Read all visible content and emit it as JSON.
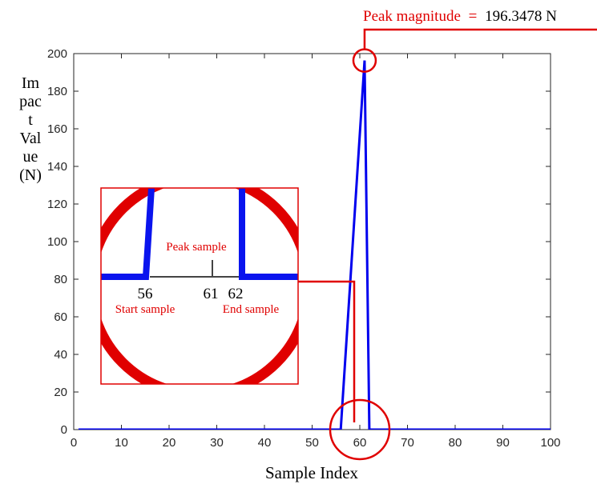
{
  "chart_data": {
    "type": "line",
    "title": "",
    "xlabel": "Sample Index",
    "ylabel_lines": [
      "Im",
      "pac",
      "t",
      "Val",
      "ue",
      "(N)"
    ],
    "xlim": [
      0,
      100
    ],
    "ylim": [
      0,
      200
    ],
    "xticks": [
      0,
      10,
      20,
      30,
      40,
      50,
      60,
      70,
      80,
      90,
      100
    ],
    "yticks": [
      0,
      20,
      40,
      60,
      80,
      100,
      120,
      140,
      160,
      180,
      200
    ],
    "grid": false,
    "series": [
      {
        "color": "#0000ee",
        "x": [
          1,
          56,
          61,
          62,
          100
        ],
        "y": [
          0,
          0,
          196.3478,
          0,
          0
        ]
      }
    ],
    "annotations": {
      "peak": {
        "label": "Peak magnitude",
        "equals": "=",
        "value_text": "196.3478 N",
        "x": 61,
        "y": 196.3478,
        "color": "#e00000"
      },
      "zoom": {
        "center_x": 60,
        "center_y": 0,
        "inset_labels": {
          "start_index": "56",
          "peak_index": "61",
          "end_index": "62",
          "start_label": "Start sample",
          "peak_label": "Peak sample",
          "end_label": "End sample"
        }
      }
    }
  }
}
